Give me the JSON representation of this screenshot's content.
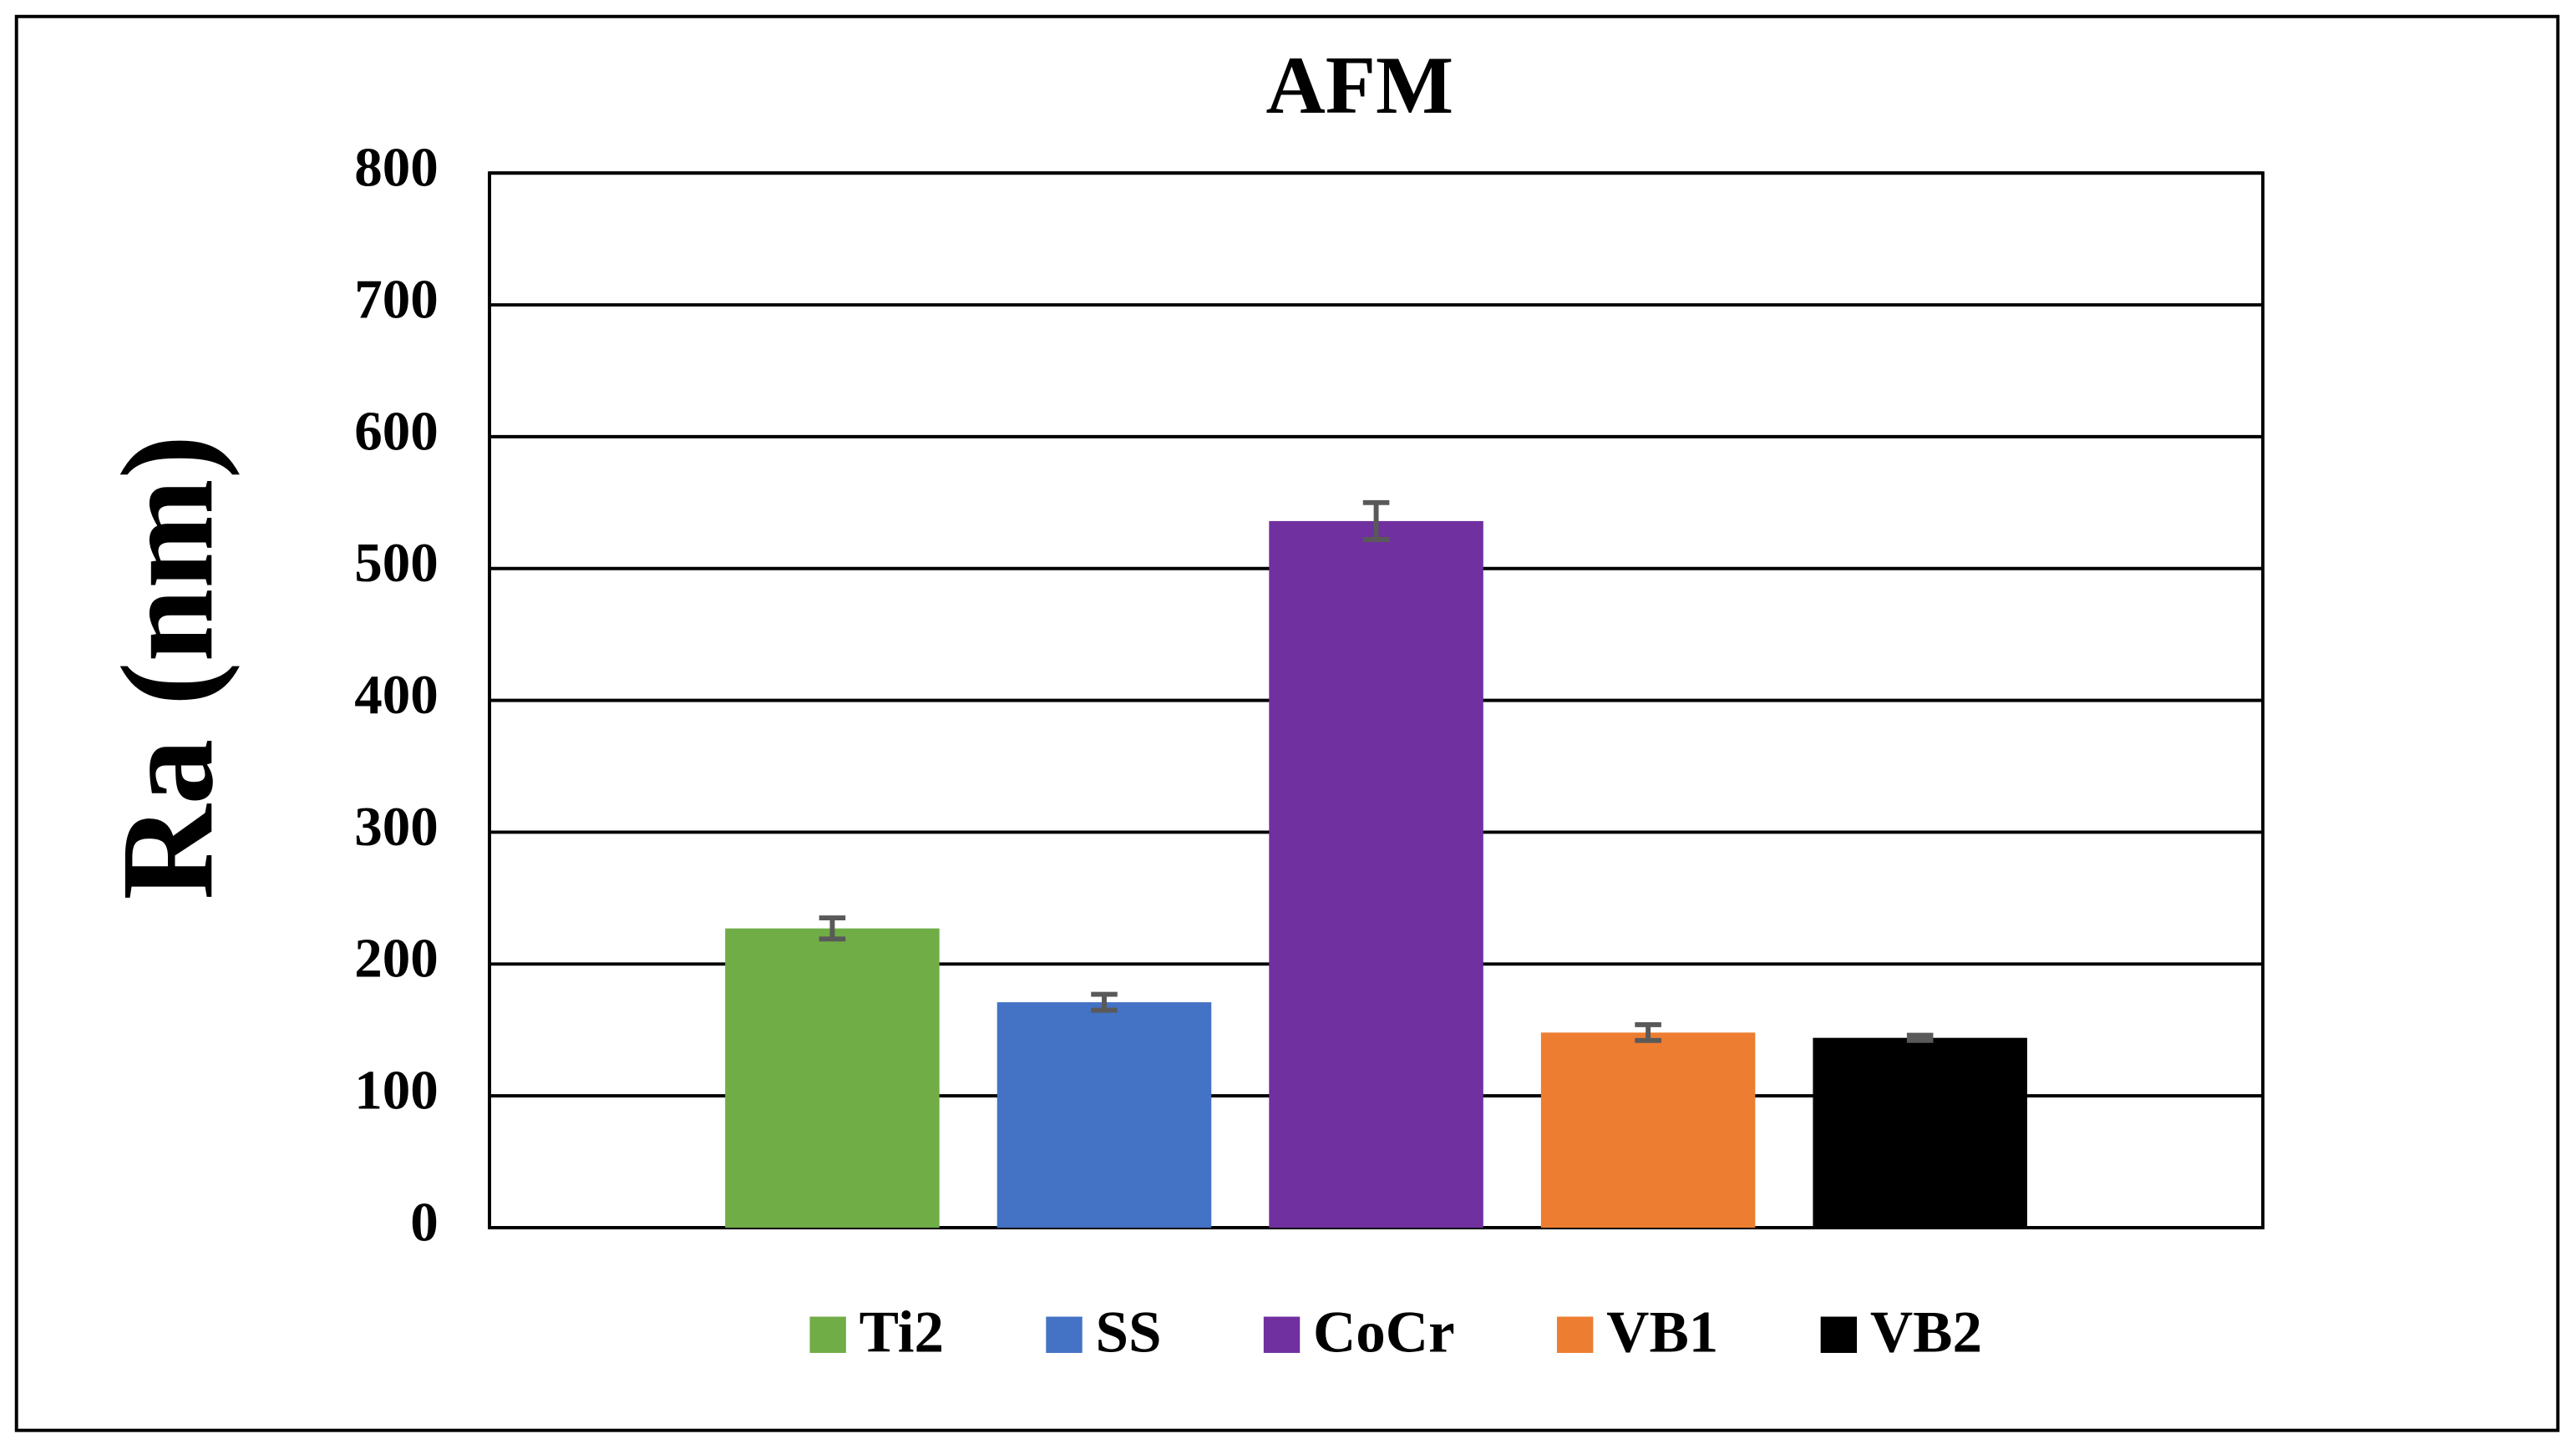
{
  "chart_data": {
    "type": "bar",
    "title": "AFM",
    "y_label": "Ra (nm)",
    "categories": [
      null
    ],
    "series": [
      {
        "name": "Ti2",
        "color": "#70ad47",
        "values": [
          227
        ],
        "errors": [
          8
        ]
      },
      {
        "name": "SS",
        "color": "#4472c4",
        "values": [
          171
        ],
        "errors": [
          6
        ]
      },
      {
        "name": "CoCr",
        "color": "#7030a0",
        "values": [
          536
        ],
        "errors": [
          14
        ]
      },
      {
        "name": "VB1",
        "color": "#ed7d31",
        "values": [
          148
        ],
        "errors": [
          6
        ]
      },
      {
        "name": "VB2",
        "color": "#000000",
        "values": [
          144
        ],
        "errors": [
          2
        ]
      }
    ],
    "ylim": [
      0,
      800
    ],
    "yticks": [
      0,
      100,
      200,
      300,
      400,
      500,
      600,
      700,
      800
    ],
    "grid": true,
    "legend": "bottom"
  }
}
